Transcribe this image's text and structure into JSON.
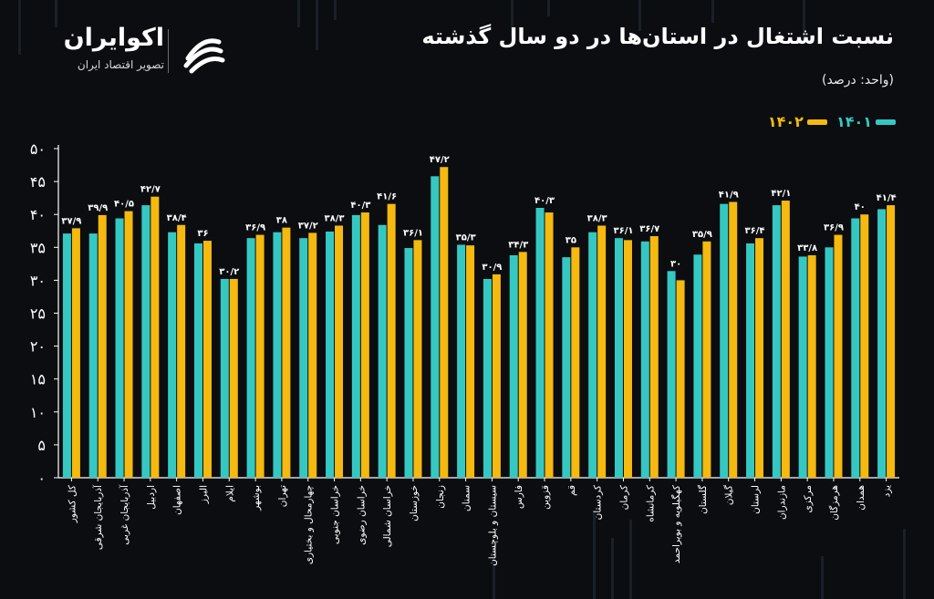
{
  "header": {
    "title": "نسبت اشتغال در استان‌ها در دو سال گذشته",
    "unit": "(واحد: درصد)"
  },
  "brand": {
    "name": "اکوایران",
    "tagline": "تصویر اقتصاد ایران"
  },
  "colors": {
    "series_1401": "#35c8c3",
    "series_1402": "#f5b90f",
    "background": "#0b0d10",
    "text": "#ffffff"
  },
  "chart_data": {
    "type": "bar",
    "categories": [
      "کل کشور",
      "آذربایجان شرقی",
      "آذربایجان غربی",
      "اردبیل",
      "اصفهان",
      "البرز",
      "ایلام",
      "بوشهر",
      "تهران",
      "چهارمحال و بختیاری",
      "خراسان جنوبی",
      "خراسان رضوی",
      "خراسان شمالی",
      "خوزستان",
      "زنجان",
      "سمنان",
      "سیستان و بلوچستان",
      "فارس",
      "قزوین",
      "قم",
      "کردستان",
      "کرمان",
      "کرمانشاه",
      "کهگیلویه و بویراحمد",
      "گلستان",
      "گیلان",
      "لرستان",
      "مازندران",
      "مرکزی",
      "هرمزگان",
      "همدان",
      "یزد"
    ],
    "series": [
      {
        "name": "۱۴۰۱",
        "values": [
          37.1,
          37.1,
          39.4,
          41.4,
          37.3,
          35.6,
          30.2,
          36.4,
          37.3,
          36.4,
          37.4,
          39.9,
          38.4,
          34.9,
          45.8,
          35.4,
          30.2,
          33.8,
          41.0,
          33.5,
          37.3,
          36.4,
          35.9,
          31.4,
          33.9,
          41.6,
          35.6,
          41.4,
          33.6,
          35.0,
          39.4,
          40.8
        ]
      },
      {
        "name": "۱۴۰۲",
        "values": [
          37.9,
          39.9,
          40.5,
          42.7,
          38.4,
          36.0,
          30.2,
          36.9,
          38.0,
          37.2,
          38.3,
          40.3,
          41.6,
          36.1,
          47.2,
          35.3,
          30.9,
          34.3,
          40.3,
          35.0,
          38.3,
          36.1,
          36.7,
          30.0,
          35.9,
          41.9,
          36.4,
          42.1,
          33.8,
          36.9,
          40.0,
          41.4
        ]
      }
    ],
    "labels": [
      "۳۷/۹",
      "۳۹/۹",
      "۴۰/۵",
      "۴۲/۷",
      "۳۸/۴",
      "۳۶",
      "۳۰/۲",
      "۳۶/۹",
      "۳۸",
      "۳۷/۲",
      "۳۸/۳",
      "۴۰/۳",
      "۴۱/۶",
      "۳۶/۱",
      "۴۷/۲",
      "۳۵/۳",
      "۳۰/۹",
      "۳۴/۳",
      "۴۰/۳",
      "۳۵",
      "۳۸/۳",
      "۳۶/۱",
      "۳۶/۷",
      "۳۰",
      "۳۵/۹",
      "۴۱/۹",
      "۳۶/۴",
      "۴۲/۱",
      "۳۳/۸",
      "۳۶/۹",
      "۴۰",
      "۴۱/۴"
    ],
    "yticks": [
      "۰",
      "۵",
      "۱۰",
      "۱۵",
      "۲۰",
      "۲۵",
      "۳۰",
      "۳۵",
      "۴۰",
      "۴۵",
      "۵۰"
    ],
    "ylim": [
      0,
      50
    ],
    "grid": false,
    "legend": "top-right"
  }
}
